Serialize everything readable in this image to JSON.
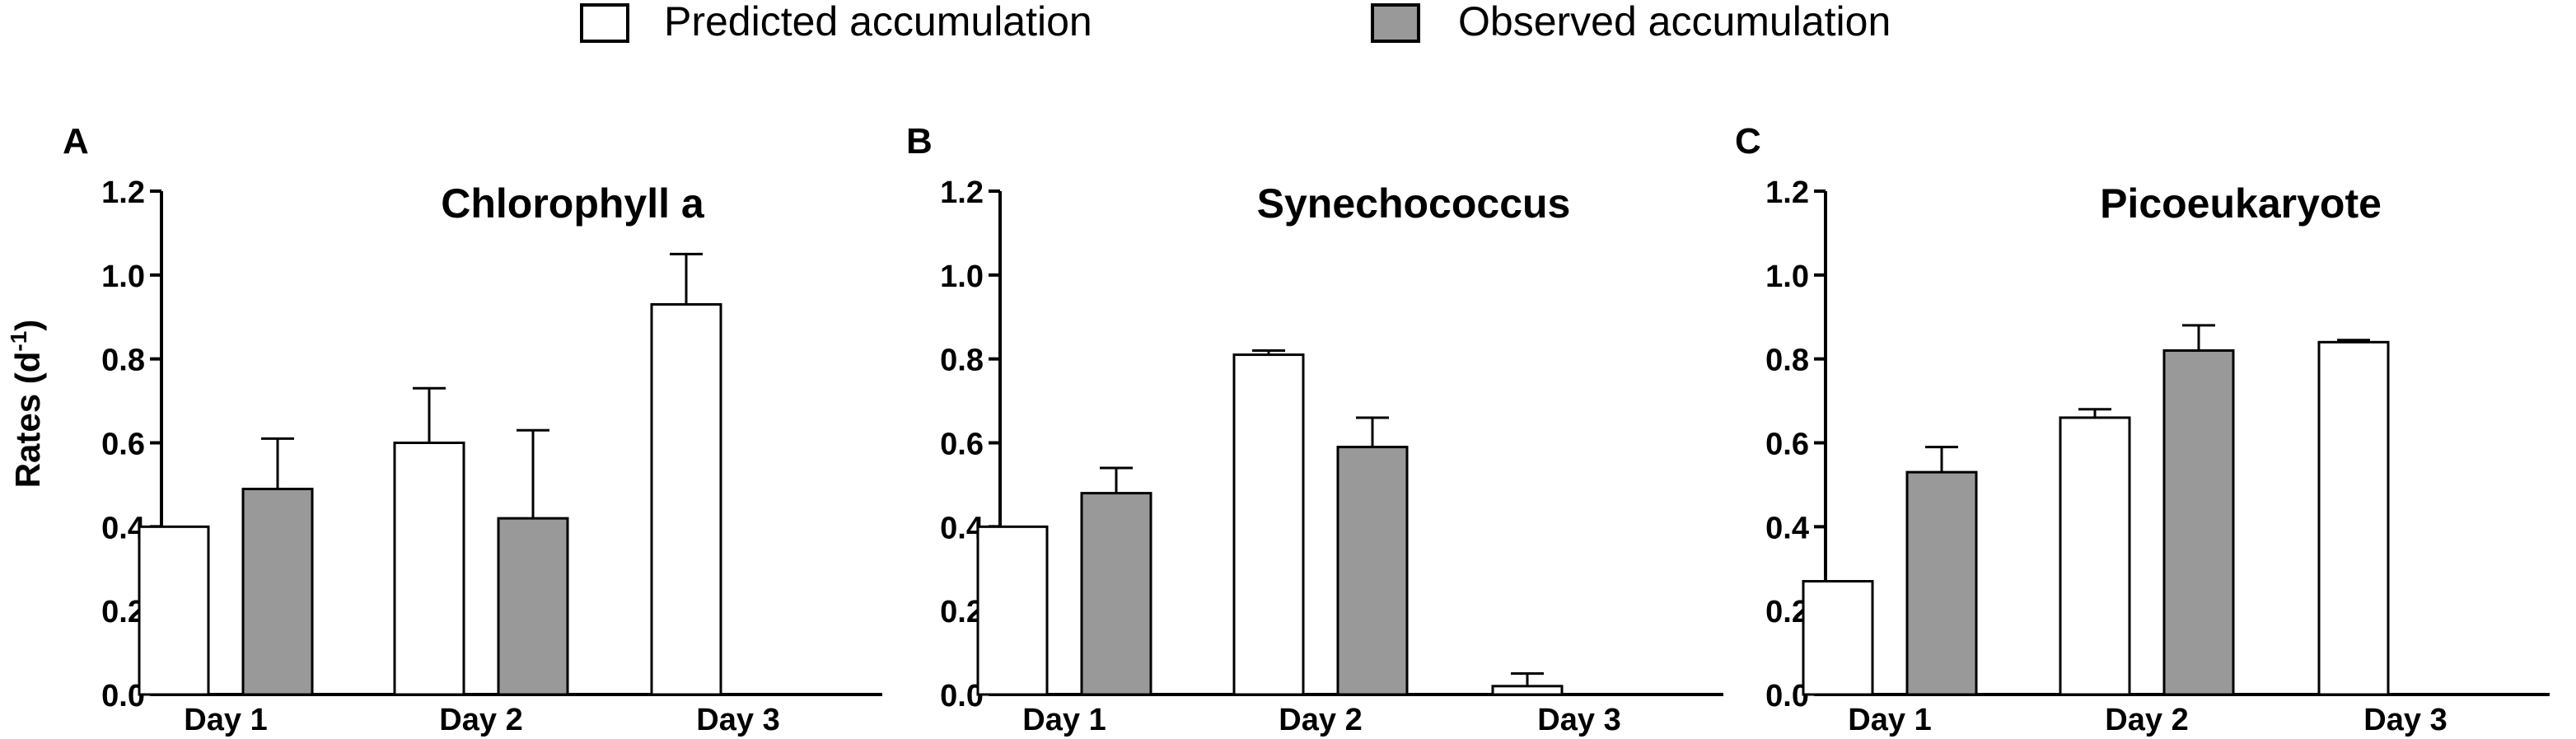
{
  "legend": [
    {
      "label": "Predicted accumulation",
      "color": "#ffffff"
    },
    {
      "label": "Observed accumulation",
      "color": "#999999"
    }
  ],
  "ylabel_main": "Rates (d",
  "ylabel_sup": "-1",
  "ylabel_close": ")",
  "chart_data": [
    {
      "panel": "A",
      "type": "bar",
      "title": "Chlorophyll a",
      "categories": [
        "Day 1",
        "Day 2",
        "Day 3"
      ],
      "ylim": [
        0,
        1.2
      ],
      "yticks": [
        "0.0",
        "0.2",
        "0.4",
        "0.6",
        "0.8",
        "1.0",
        "1.2"
      ],
      "ylabel": "Rates (d-1)",
      "series": [
        {
          "name": "Predicted accumulation",
          "values": [
            0.4,
            0.6,
            0.93
          ],
          "errors": [
            null,
            0.13,
            0.12
          ]
        },
        {
          "name": "Observed accumulation",
          "values": [
            0.49,
            0.42,
            null
          ],
          "errors": [
            0.12,
            0.21,
            null
          ]
        }
      ]
    },
    {
      "panel": "B",
      "type": "bar",
      "title": "Synechococcus",
      "categories": [
        "Day 1",
        "Day 2",
        "Day 3"
      ],
      "ylim": [
        0,
        1.2
      ],
      "yticks": [
        "0.0",
        "0.2",
        "0.4",
        "0.6",
        "0.8",
        "1.0",
        "1.2"
      ],
      "series": [
        {
          "name": "Predicted accumulation",
          "values": [
            0.4,
            0.81,
            0.02
          ],
          "errors": [
            null,
            0.01,
            0.03
          ]
        },
        {
          "name": "Observed accumulation",
          "values": [
            0.48,
            0.59,
            null
          ],
          "errors": [
            0.06,
            0.07,
            null
          ]
        }
      ]
    },
    {
      "panel": "C",
      "type": "bar",
      "title": "Picoeukaryote",
      "categories": [
        "Day 1",
        "Day 2",
        "Day 3"
      ],
      "ylim": [
        0,
        1.2
      ],
      "yticks": [
        "0.0",
        "0.2",
        "0.4",
        "0.6",
        "0.8",
        "1.0",
        "1.2"
      ],
      "series": [
        {
          "name": "Predicted accumulation",
          "values": [
            0.27,
            0.66,
            0.84
          ],
          "errors": [
            null,
            0.02,
            0.005
          ]
        },
        {
          "name": "Observed accumulation",
          "values": [
            0.53,
            0.82,
            null
          ],
          "errors": [
            0.06,
            0.06,
            null
          ]
        }
      ]
    }
  ]
}
